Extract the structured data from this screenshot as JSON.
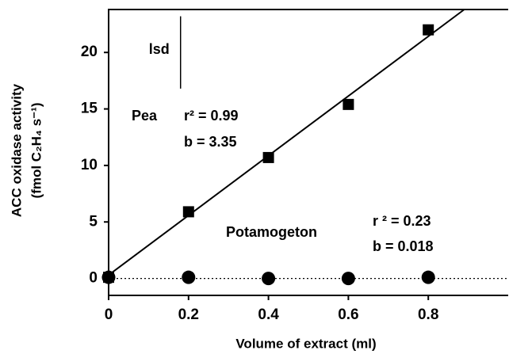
{
  "chart_data": {
    "type": "scatter",
    "x_label": "Volume of extract (ml)",
    "y_label": [
      "ACC oxidase activity",
      "(fmol C₂H₄ s⁻¹)"
    ],
    "xlim": [
      0,
      1.0
    ],
    "ylim": [
      -1.5,
      23.8
    ],
    "xticks": [
      0,
      0.2,
      0.4,
      0.6,
      0.8
    ],
    "yticks": [
      0,
      5,
      10,
      15,
      20
    ],
    "series": [
      {
        "name": "Pea",
        "marker": "square",
        "color": "#000000",
        "x": [
          0,
          0.2,
          0.4,
          0.6,
          0.8
        ],
        "values": [
          0.1,
          5.9,
          10.7,
          15.4,
          22.0
        ]
      },
      {
        "name": "Potamogeton",
        "marker": "circle",
        "color": "#000000",
        "x": [
          0,
          0.2,
          0.4,
          0.6,
          0.8
        ],
        "values": [
          0.1,
          0.1,
          0.0,
          0.0,
          0.1
        ]
      }
    ],
    "fits": [
      {
        "style": "solid",
        "x": [
          0,
          0.89
        ],
        "values": [
          0.3,
          23.8
        ]
      },
      {
        "style": "dotted",
        "x": [
          0,
          1.0
        ],
        "values": [
          0,
          0
        ]
      }
    ],
    "lsd": {
      "label": "lsd",
      "x": 0.18,
      "range": [
        16.8,
        23.2
      ]
    },
    "annotations": [
      "r² = 0.99",
      "b = 3.35",
      "r ² = 0.23",
      "b = 0.018"
    ]
  }
}
